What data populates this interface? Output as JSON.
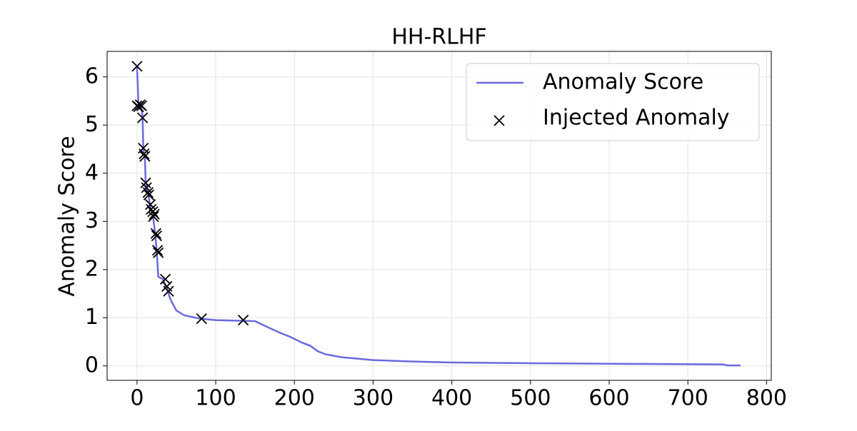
{
  "chart_data": {
    "type": "line",
    "title": "HH-RLHF",
    "ylabel": "Anomaly Score",
    "xlim": [
      -38,
      806
    ],
    "ylim": [
      -0.3,
      6.53
    ],
    "xticks": [
      0,
      100,
      200,
      300,
      400,
      500,
      600,
      700,
      800
    ],
    "yticks": [
      0,
      1,
      2,
      3,
      4,
      5,
      6
    ],
    "grid": true,
    "legend": "upper right",
    "series": [
      {
        "name": "Anomaly Score",
        "color": "#6a6ae0",
        "marker": "none",
        "x": [
          0,
          2,
          5,
          7,
          8,
          10,
          11,
          14,
          17,
          20,
          23,
          25,
          27,
          33,
          38,
          42,
          45,
          50,
          60,
          80,
          100,
          150,
          160,
          180,
          195,
          210,
          220,
          230,
          240,
          260,
          300,
          350,
          400,
          500,
          600,
          700,
          745,
          750,
          767
        ],
        "values": [
          6.2,
          5.4,
          5.4,
          5.2,
          4.5,
          4.3,
          3.8,
          3.6,
          3.3,
          3.15,
          2.75,
          2.4,
          1.85,
          1.8,
          1.6,
          1.4,
          1.3,
          1.15,
          1.05,
          0.98,
          0.95,
          0.93,
          0.85,
          0.7,
          0.6,
          0.48,
          0.42,
          0.3,
          0.24,
          0.18,
          0.12,
          0.09,
          0.07,
          0.055,
          0.045,
          0.035,
          0.03,
          0.01,
          0.01
        ]
      },
      {
        "name": "Injected Anomaly",
        "color": "#000000",
        "marker": "x",
        "x": [
          0,
          0,
          2,
          4,
          6,
          7,
          8,
          9,
          10,
          11,
          12,
          14,
          15,
          17,
          18,
          20,
          21,
          22,
          24,
          25,
          26,
          27,
          36,
          38,
          40,
          82,
          135
        ],
        "values": [
          6.22,
          5.4,
          5.38,
          5.42,
          5.4,
          5.15,
          4.52,
          4.4,
          4.35,
          3.8,
          3.7,
          3.6,
          3.55,
          3.35,
          3.25,
          3.2,
          3.1,
          3.15,
          2.75,
          2.7,
          2.4,
          2.35,
          1.8,
          1.65,
          1.55,
          0.98,
          0.95
        ]
      }
    ]
  }
}
